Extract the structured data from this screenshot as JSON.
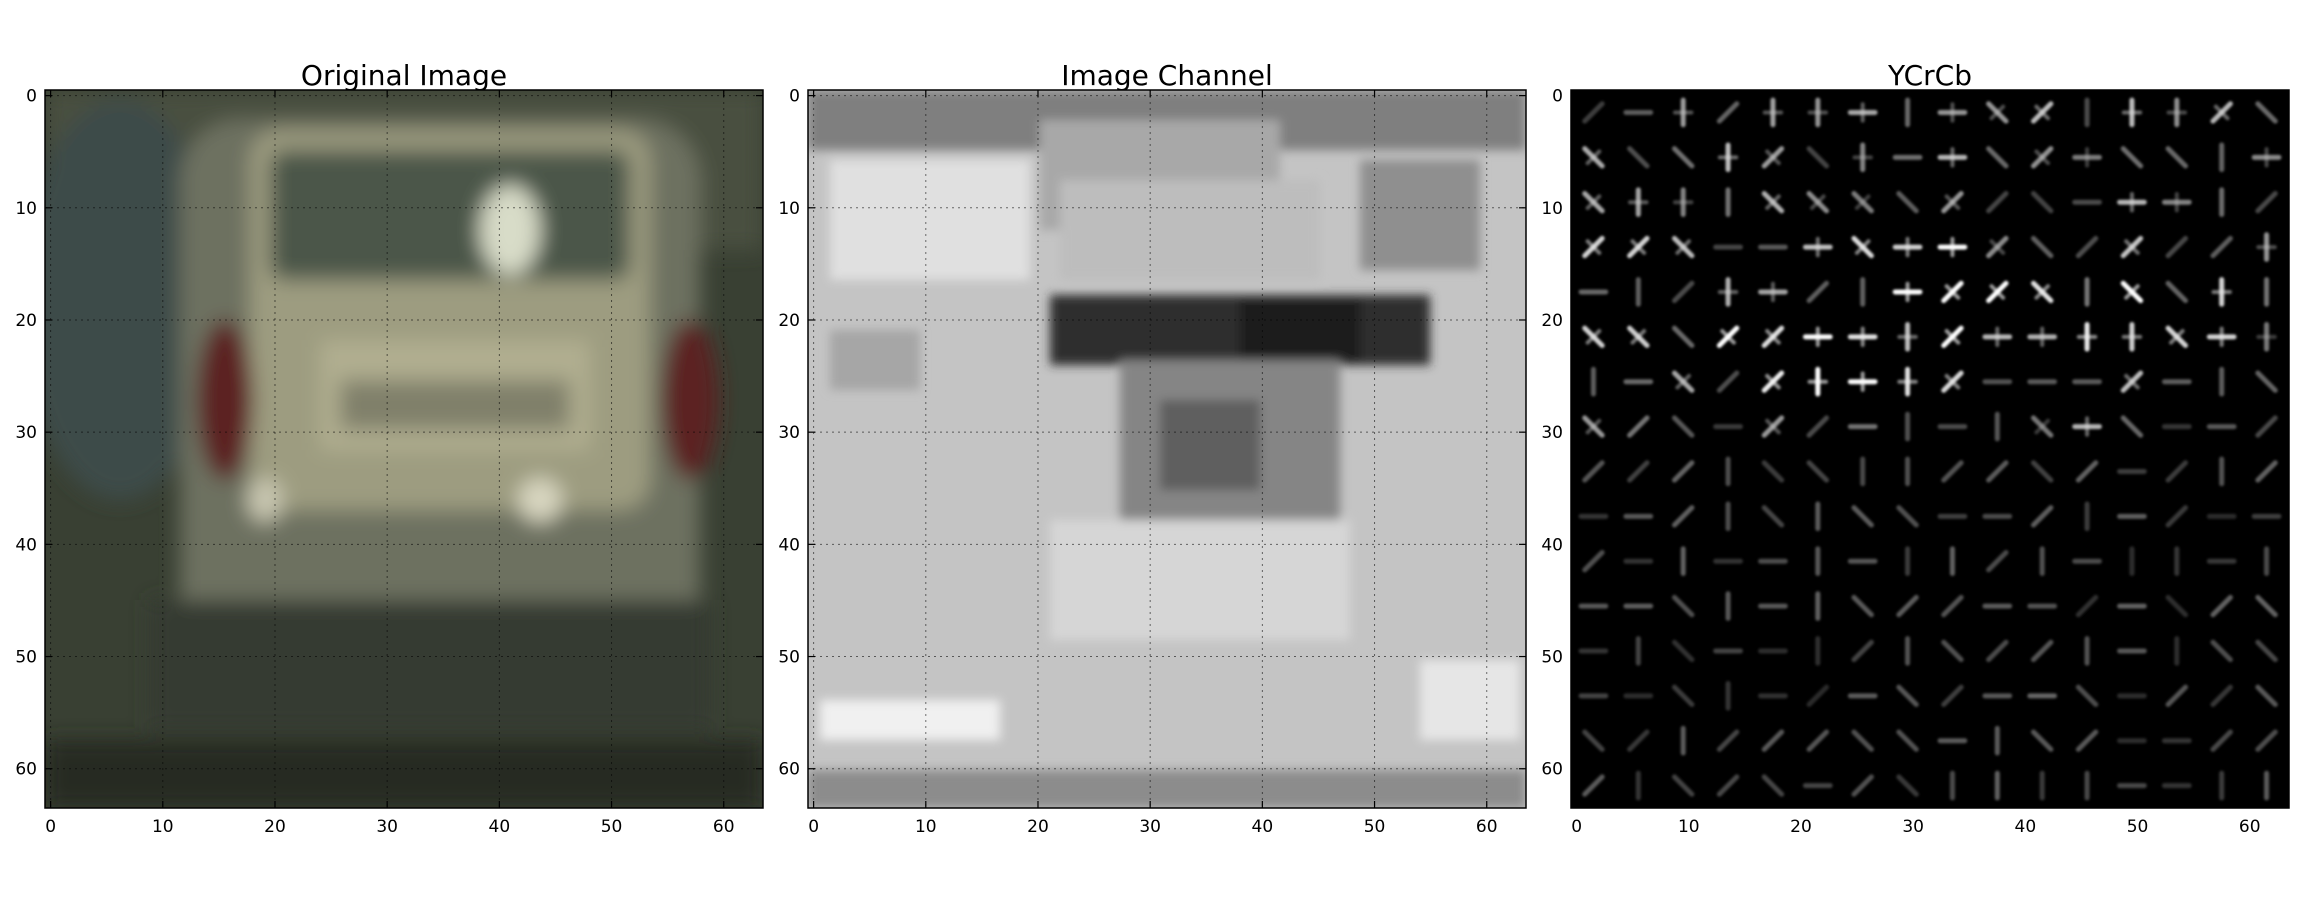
{
  "figure": {
    "background": "#ffffff"
  },
  "chart_data": [
    {
      "type": "heatmap",
      "title": "Original Image",
      "image_kind": "rgb",
      "image_description_colors": {
        "car_body": "#a9a88c",
        "background": "#3a3f35",
        "tail_light": "#6b2a2a",
        "window": "#4f5a4a"
      },
      "xlim": [
        -0.5,
        63.5
      ],
      "ylim": [
        63.5,
        -0.5
      ],
      "xticks": [
        0,
        10,
        20,
        30,
        40,
        50,
        60
      ],
      "yticks": [
        0,
        10,
        20,
        30,
        40,
        50,
        60
      ],
      "xtick_labels": [
        "0",
        "10",
        "20",
        "30",
        "40",
        "50",
        "60"
      ],
      "ytick_labels": [
        "0",
        "10",
        "20",
        "30",
        "40",
        "50",
        "60"
      ],
      "grid": true
    },
    {
      "type": "heatmap",
      "title": "Image Channel",
      "image_kind": "grayscale",
      "xlim": [
        -0.5,
        63.5
      ],
      "ylim": [
        63.5,
        -0.5
      ],
      "xticks": [
        0,
        10,
        20,
        30,
        40,
        50,
        60
      ],
      "yticks": [
        0,
        10,
        20,
        30,
        40,
        50,
        60
      ],
      "xtick_labels": [
        "0",
        "10",
        "20",
        "30",
        "40",
        "50",
        "60"
      ],
      "ytick_labels": [
        "0",
        "10",
        "20",
        "30",
        "40",
        "50",
        "60"
      ],
      "grid": true
    },
    {
      "type": "heatmap",
      "title": "YCrCb",
      "image_kind": "hog-visualization",
      "hog_cells": 16,
      "xlim": [
        -0.5,
        63.5
      ],
      "ylim": [
        63.5,
        -0.5
      ],
      "xticks": [
        0,
        10,
        20,
        30,
        40,
        50,
        60
      ],
      "yticks": [
        0,
        10,
        20,
        30,
        40,
        50,
        60
      ],
      "xtick_labels": [
        "0",
        "10",
        "20",
        "30",
        "40",
        "50",
        "60"
      ],
      "ytick_labels": [
        "0",
        "10",
        "20",
        "30",
        "40",
        "50",
        "60"
      ],
      "grid": false
    }
  ]
}
